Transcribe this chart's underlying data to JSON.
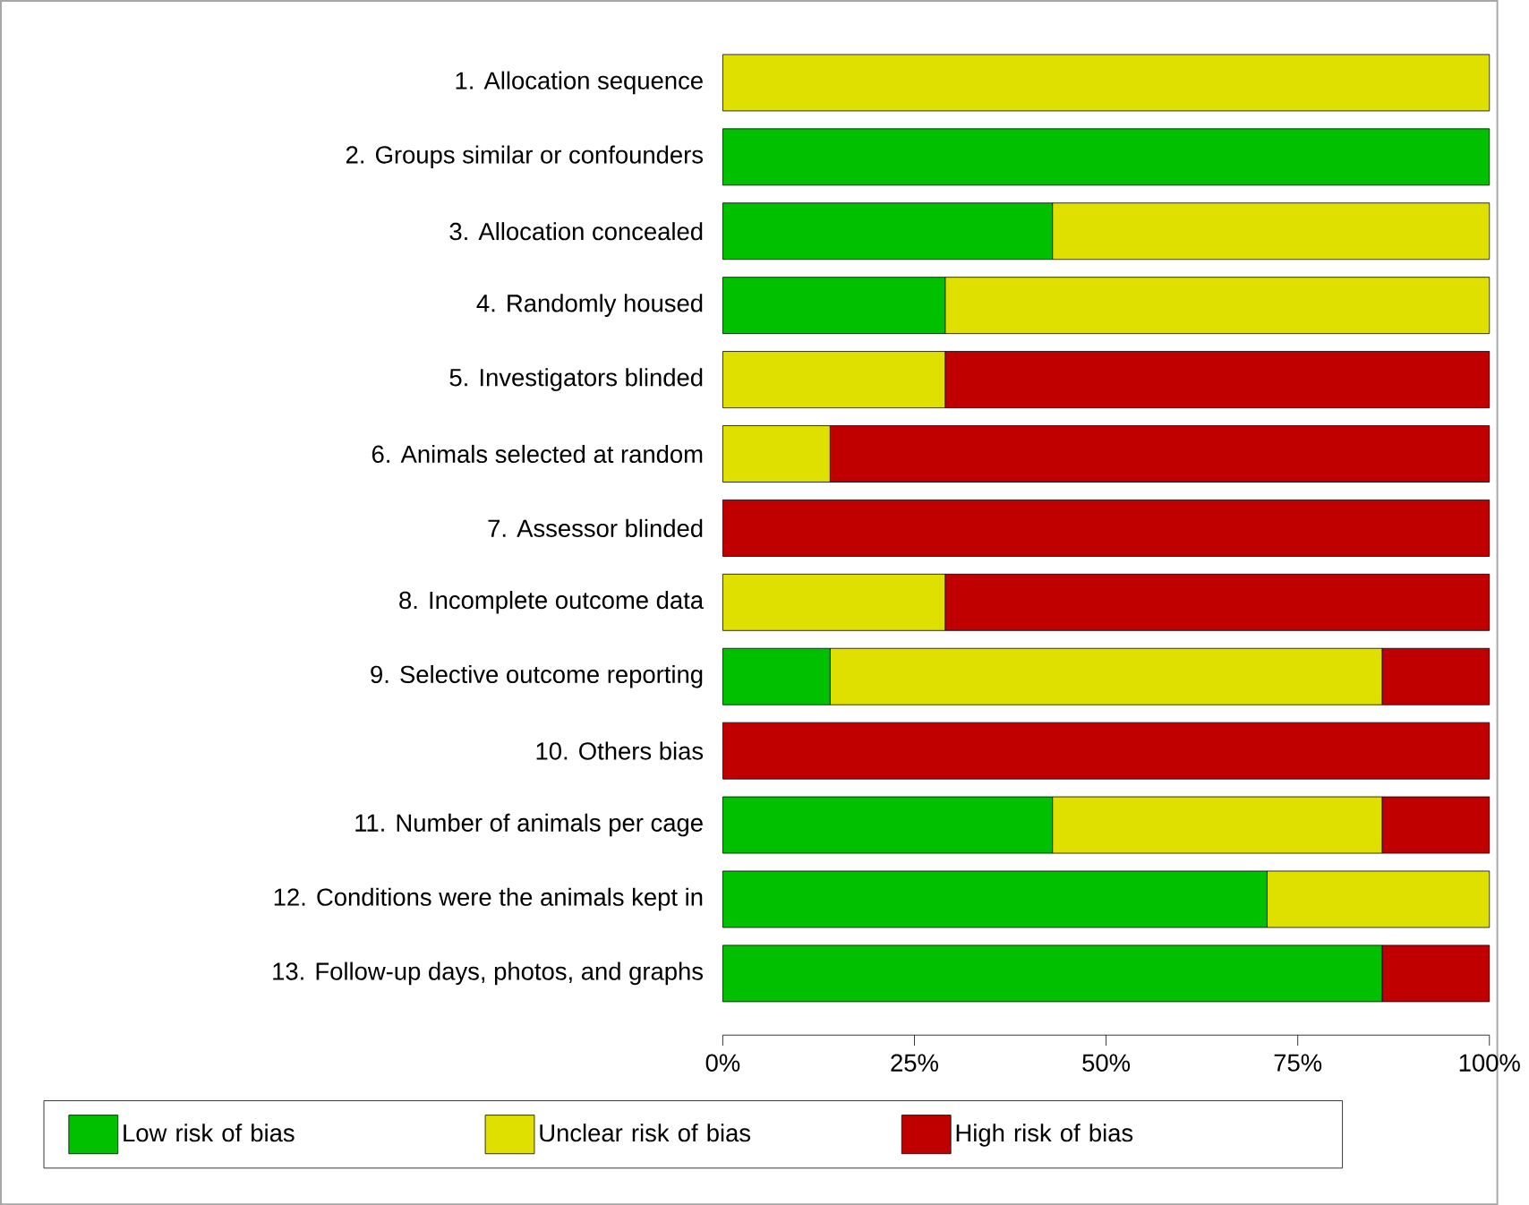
{
  "chart_data": {
    "type": "bar",
    "orientation": "horizontal",
    "stacked": true,
    "categories": [
      "1. Allocation sequence",
      "2. Groups similar or confounders",
      "3. Allocation concealed",
      "4. Randomly housed",
      "5. Investigators blinded",
      "6. Animals selected at random",
      "7. Assessor blinded",
      "8. Incomplete outcome data",
      "9. Selective outcome reporting",
      "10. Others bias",
      "11. Number of animals per cage",
      "12. Conditions were the animals kept in",
      "13. Follow-up days, photos, and graphs"
    ],
    "series": [
      {
        "name": "Low risk of bias",
        "color": "#00c000",
        "values": [
          0,
          100,
          43,
          29,
          0,
          0,
          0,
          0,
          14,
          0,
          43,
          71,
          86
        ]
      },
      {
        "name": "Unclear risk of bias",
        "color": "#dfdf00",
        "values": [
          100,
          0,
          57,
          71,
          29,
          14,
          0,
          29,
          72,
          0,
          43,
          29,
          0
        ]
      },
      {
        "name": "High risk of bias",
        "color": "#c00000",
        "values": [
          0,
          0,
          0,
          0,
          71,
          86,
          100,
          71,
          14,
          100,
          14,
          0,
          14
        ]
      }
    ],
    "xlim": [
      0,
      100
    ],
    "xticks": [
      {
        "value": 0,
        "label": "0%"
      },
      {
        "value": 25,
        "label": "25%"
      },
      {
        "value": 50,
        "label": "50%"
      },
      {
        "value": 75,
        "label": "75%"
      },
      {
        "value": 100,
        "label": "100%"
      }
    ],
    "grid": false,
    "legend": "bottom"
  }
}
